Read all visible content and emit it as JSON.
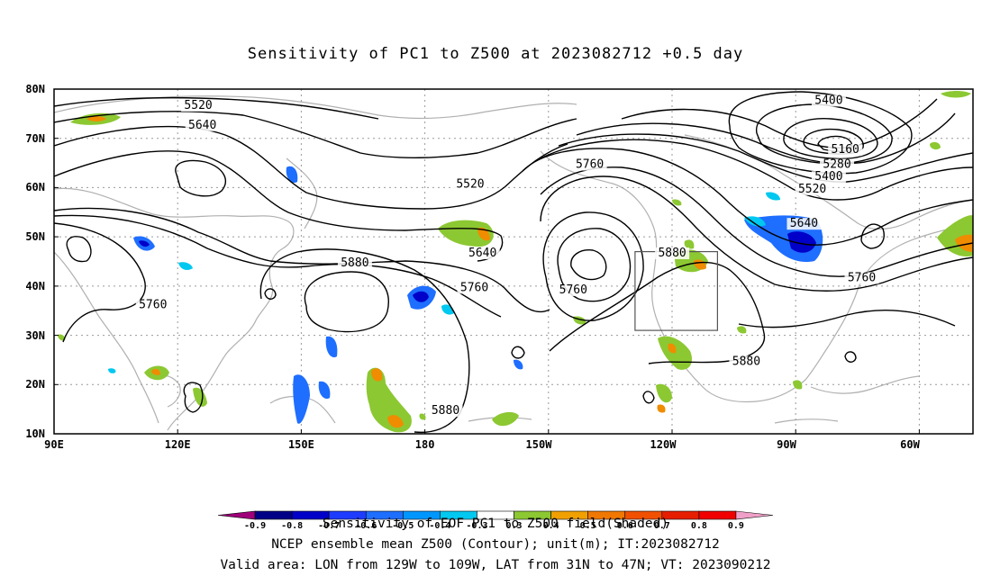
{
  "title": "Sensitivity of PC1 to Z500 at 2023082712 +0.5 day",
  "captions": {
    "line1": "Sensitivity of EOF PC1 to Z500 field(Shaded)",
    "line2": "NCEP ensemble mean Z500 (Contour); unit(m); IT:2023082712",
    "line3": "Valid area: LON from 129W to 109W, LAT from 31N to 47N; VT: 2023090212"
  },
  "map": {
    "lat_labels": [
      "80N",
      "70N",
      "60N",
      "50N",
      "40N",
      "30N",
      "20N",
      "10N"
    ],
    "lon_labels": [
      "90E",
      "120E",
      "150E",
      "180",
      "150W",
      "120W",
      "90W",
      "60W"
    ],
    "lon_range": [
      90,
      313
    ],
    "lat_range": [
      10,
      80
    ],
    "valid_box": {
      "lon_west": 231,
      "lon_east": 251,
      "lat_south": 31,
      "lat_north": 47
    },
    "contour_labels": [
      {
        "text": "5520",
        "lon": 125,
        "lat": 76
      },
      {
        "text": "5640",
        "lon": 126,
        "lat": 72
      },
      {
        "text": "5400",
        "lon": 278,
        "lat": 77
      },
      {
        "text": "5160",
        "lon": 282,
        "lat": 67
      },
      {
        "text": "5280",
        "lon": 280,
        "lat": 64
      },
      {
        "text": "5400",
        "lon": 278,
        "lat": 61.5
      },
      {
        "text": "5520",
        "lon": 274,
        "lat": 59
      },
      {
        "text": "5640",
        "lon": 272,
        "lat": 52
      },
      {
        "text": "5760",
        "lon": 286,
        "lat": 41
      },
      {
        "text": "5760",
        "lon": 220,
        "lat": 64
      },
      {
        "text": "5520",
        "lon": 191,
        "lat": 60
      },
      {
        "text": "5640",
        "lon": 194,
        "lat": 46
      },
      {
        "text": "5880",
        "lon": 163,
        "lat": 44
      },
      {
        "text": "5760",
        "lon": 192,
        "lat": 39
      },
      {
        "text": "5760",
        "lon": 216,
        "lat": 38.5
      },
      {
        "text": "5880",
        "lon": 240,
        "lat": 46
      },
      {
        "text": "5880",
        "lon": 258,
        "lat": 24
      },
      {
        "text": "5760",
        "lon": 114,
        "lat": 35.5
      },
      {
        "text": "5880",
        "lon": 185,
        "lat": 14
      }
    ]
  },
  "colorbar": {
    "labels": [
      "-0.9",
      "-0.8",
      "-0.7",
      "-0.6",
      "-0.5",
      "-0.4",
      "-0.3",
      "0.3",
      "0.4",
      "0.5",
      "0.6",
      "0.7",
      "0.8",
      "0.9"
    ],
    "colors": [
      "#a0007a",
      "#000087",
      "#0000c8",
      "#1e3cff",
      "#1e6eff",
      "#0096ff",
      "#00c8f0",
      "#ffffff",
      "#8cc832",
      "#f0a000",
      "#f07800",
      "#f05000",
      "#e61e00",
      "#f00000",
      "#f0a0c8"
    ]
  }
}
